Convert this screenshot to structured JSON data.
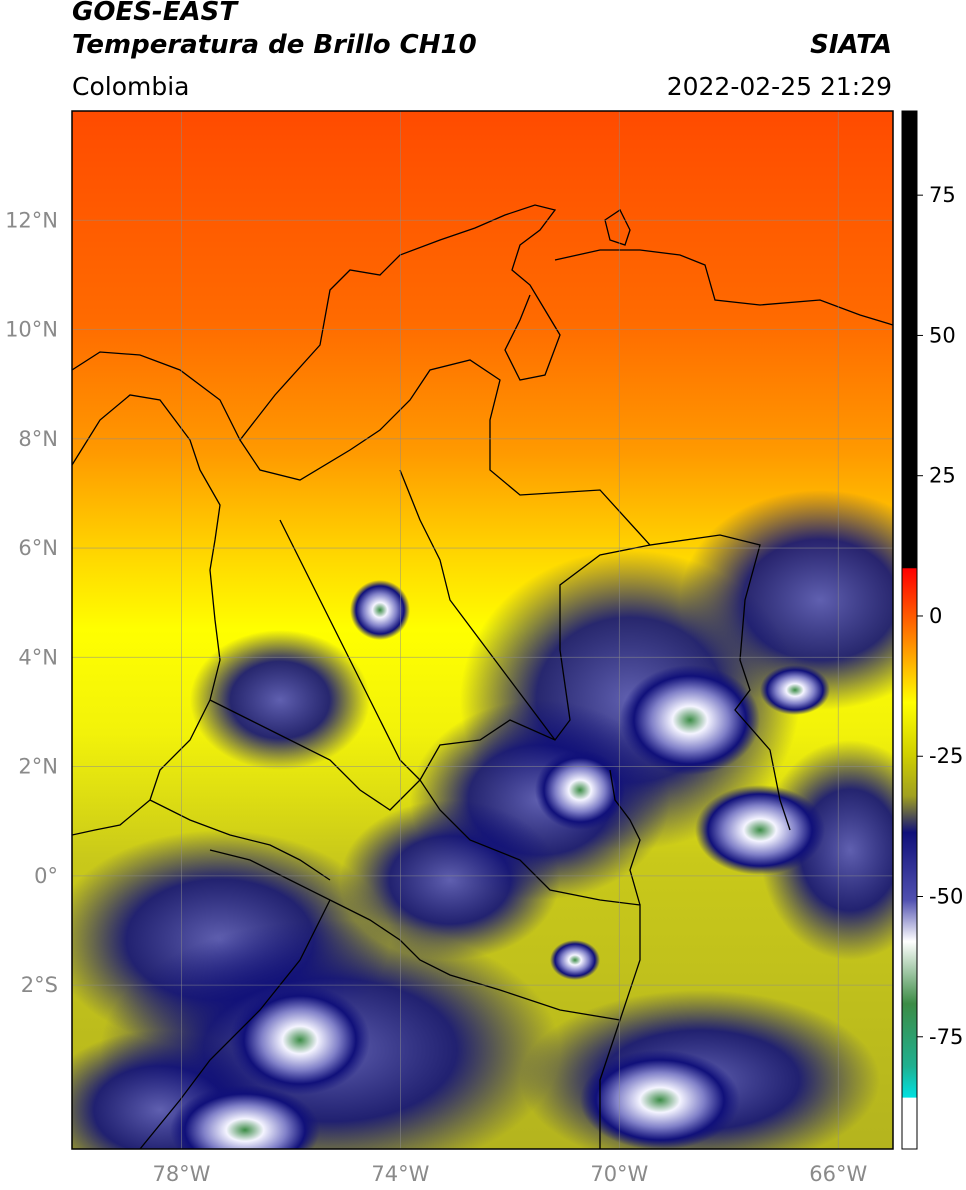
{
  "header": {
    "satellite": "GOES-EAST",
    "product": "Temperatura de Brillo CH10",
    "region": "Colombia",
    "agency": "SIATA",
    "datetime": "2022-02-25 21:29"
  },
  "map": {
    "lon_range": [
      -80,
      -65
    ],
    "lat_range": [
      -5,
      14
    ],
    "lat_ticks": [
      {
        "value": 12,
        "label": "12°N"
      },
      {
        "value": 10,
        "label": "10°N"
      },
      {
        "value": 8,
        "label": "8°N"
      },
      {
        "value": 6,
        "label": "6°N"
      },
      {
        "value": 4,
        "label": "4°N"
      },
      {
        "value": 2,
        "label": "2°N"
      },
      {
        "value": 0,
        "label": "0°"
      },
      {
        "value": -2,
        "label": "2°S"
      }
    ],
    "lon_ticks": [
      {
        "value": -78,
        "label": "78°W"
      },
      {
        "value": -74,
        "label": "74°W"
      },
      {
        "value": -70,
        "label": "70°W"
      },
      {
        "value": -66,
        "label": "66°W"
      }
    ],
    "grid": true,
    "colors": {
      "warm_top": "#ff4b00",
      "orange": "#ff8c00",
      "yellow": "#ffff00",
      "olive": "#b4b41e",
      "navy": "#10107a",
      "white": "#f4f4ff",
      "green": "#3c8c46",
      "border": "#000000"
    }
  },
  "colorbar": {
    "range": [
      -95,
      90
    ],
    "ticks": [
      {
        "value": 75,
        "label": "75"
      },
      {
        "value": 50,
        "label": "50"
      },
      {
        "value": 25,
        "label": "25"
      },
      {
        "value": 0,
        "label": "0"
      },
      {
        "value": -25,
        "label": "-25"
      },
      {
        "value": -50,
        "label": "-50"
      },
      {
        "value": -75,
        "label": "-75"
      }
    ]
  }
}
